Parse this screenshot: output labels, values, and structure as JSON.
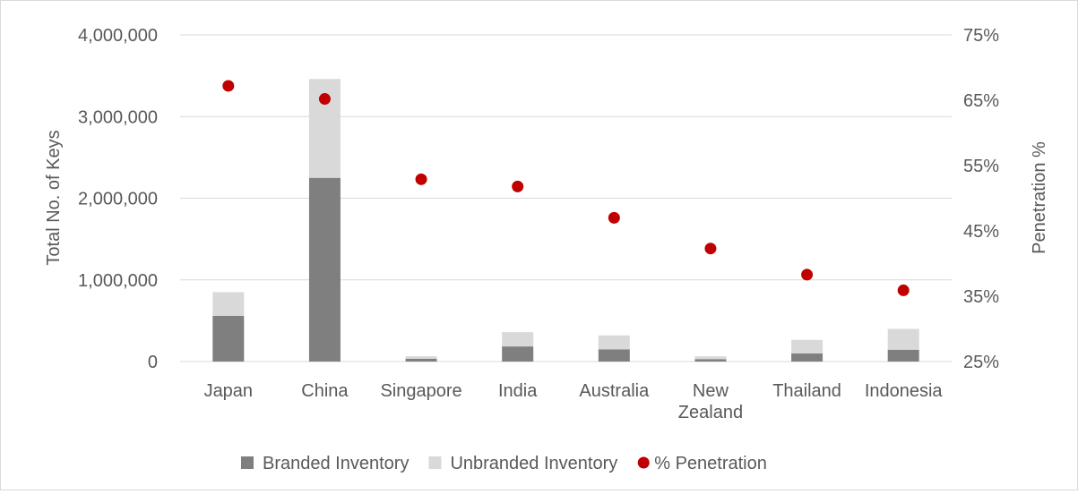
{
  "chart_data": {
    "type": "bar",
    "subtype": "stacked bar with secondary-axis scatter",
    "categories": [
      [
        "Japan"
      ],
      [
        "China"
      ],
      [
        "Singapore"
      ],
      [
        "India"
      ],
      [
        "Australia"
      ],
      [
        "New",
        "Zealand"
      ],
      [
        "Thailand"
      ],
      [
        "Indonesia"
      ]
    ],
    "series": [
      {
        "name": "Branded Inventory",
        "kind": "bar",
        "axis": "left",
        "color": "#7f7f7f",
        "values": [
          560000,
          2250000,
          35000,
          185000,
          150000,
          30000,
          100000,
          145000
        ]
      },
      {
        "name": "Unbranded Inventory",
        "kind": "bar",
        "axis": "left",
        "color": "#d9d9d9",
        "values": [
          290000,
          1210000,
          30000,
          175000,
          170000,
          35000,
          165000,
          255000
        ]
      },
      {
        "name": "% Penetration",
        "kind": "scatter",
        "axis": "right",
        "color": "#c00000",
        "values": [
          67.2,
          65.2,
          52.9,
          51.8,
          47.0,
          42.3,
          38.3,
          35.9
        ]
      }
    ],
    "ylabel": "Total No. of Keys",
    "y2label": "Penetration %",
    "ylim": [
      0,
      4000000
    ],
    "y2lim": [
      25,
      75
    ],
    "yticks": [
      "0",
      "1,000,000",
      "2,000,000",
      "3,000,000",
      "4,000,000"
    ],
    "y2ticks": [
      "25%",
      "35%",
      "45%",
      "55%",
      "65%",
      "75%"
    ],
    "grid": true,
    "legend_position": "bottom"
  }
}
